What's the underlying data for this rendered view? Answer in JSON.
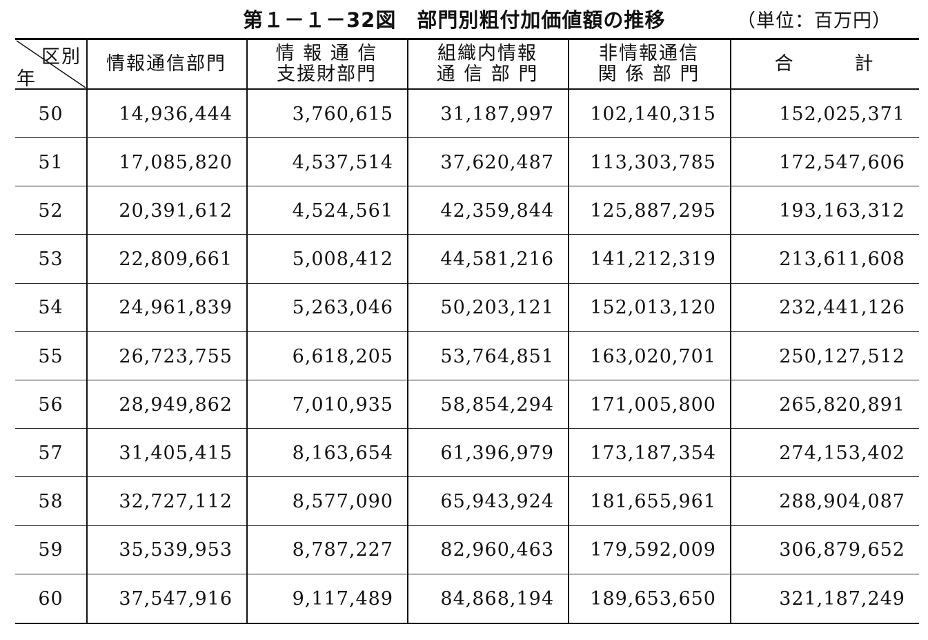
{
  "title": "第１－１－32図　部門別粗付加価値額の推移",
  "unit": "（単位：百万円）",
  "header": {
    "corner_top": "区別",
    "corner_bottom": "年",
    "columns": [
      [
        "情報通信部門"
      ],
      [
        "情 報 通 信",
        "支援財部門"
      ],
      [
        "組織内情報",
        "通 信 部 門"
      ],
      [
        "非情報通信",
        "関 係 部 門"
      ],
      [
        "合　　　計"
      ]
    ]
  },
  "rows": [
    {
      "year": "50",
      "values": [
        "14,936,444",
        "3,760,615",
        "31,187,997",
        "102,140,315",
        "152,025,371"
      ]
    },
    {
      "year": "51",
      "values": [
        "17,085,820",
        "4,537,514",
        "37,620,487",
        "113,303,785",
        "172,547,606"
      ]
    },
    {
      "year": "52",
      "values": [
        "20,391,612",
        "4,524,561",
        "42,359,844",
        "125,887,295",
        "193,163,312"
      ]
    },
    {
      "year": "53",
      "values": [
        "22,809,661",
        "5,008,412",
        "44,581,216",
        "141,212,319",
        "213,611,608"
      ]
    },
    {
      "year": "54",
      "values": [
        "24,961,839",
        "5,263,046",
        "50,203,121",
        "152,013,120",
        "232,441,126"
      ]
    },
    {
      "year": "55",
      "values": [
        "26,723,755",
        "6,618,205",
        "53,764,851",
        "163,020,701",
        "250,127,512"
      ]
    },
    {
      "year": "56",
      "values": [
        "28,949,862",
        "7,010,935",
        "58,854,294",
        "171,005,800",
        "265,820,891"
      ]
    },
    {
      "year": "57",
      "values": [
        "31,405,415",
        "8,163,654",
        "61,396,979",
        "173,187,354",
        "274,153,402"
      ]
    },
    {
      "year": "58",
      "values": [
        "32,727,112",
        "8,577,090",
        "65,943,924",
        "181,655,961",
        "288,904,087"
      ]
    },
    {
      "year": "59",
      "values": [
        "35,539,953",
        "8,787,227",
        "82,960,463",
        "179,592,009",
        "306,879,652"
      ]
    },
    {
      "year": "60",
      "values": [
        "37,547,916",
        "9,117,489",
        "84,868,194",
        "189,653,650",
        "321,187,249"
      ]
    }
  ]
}
